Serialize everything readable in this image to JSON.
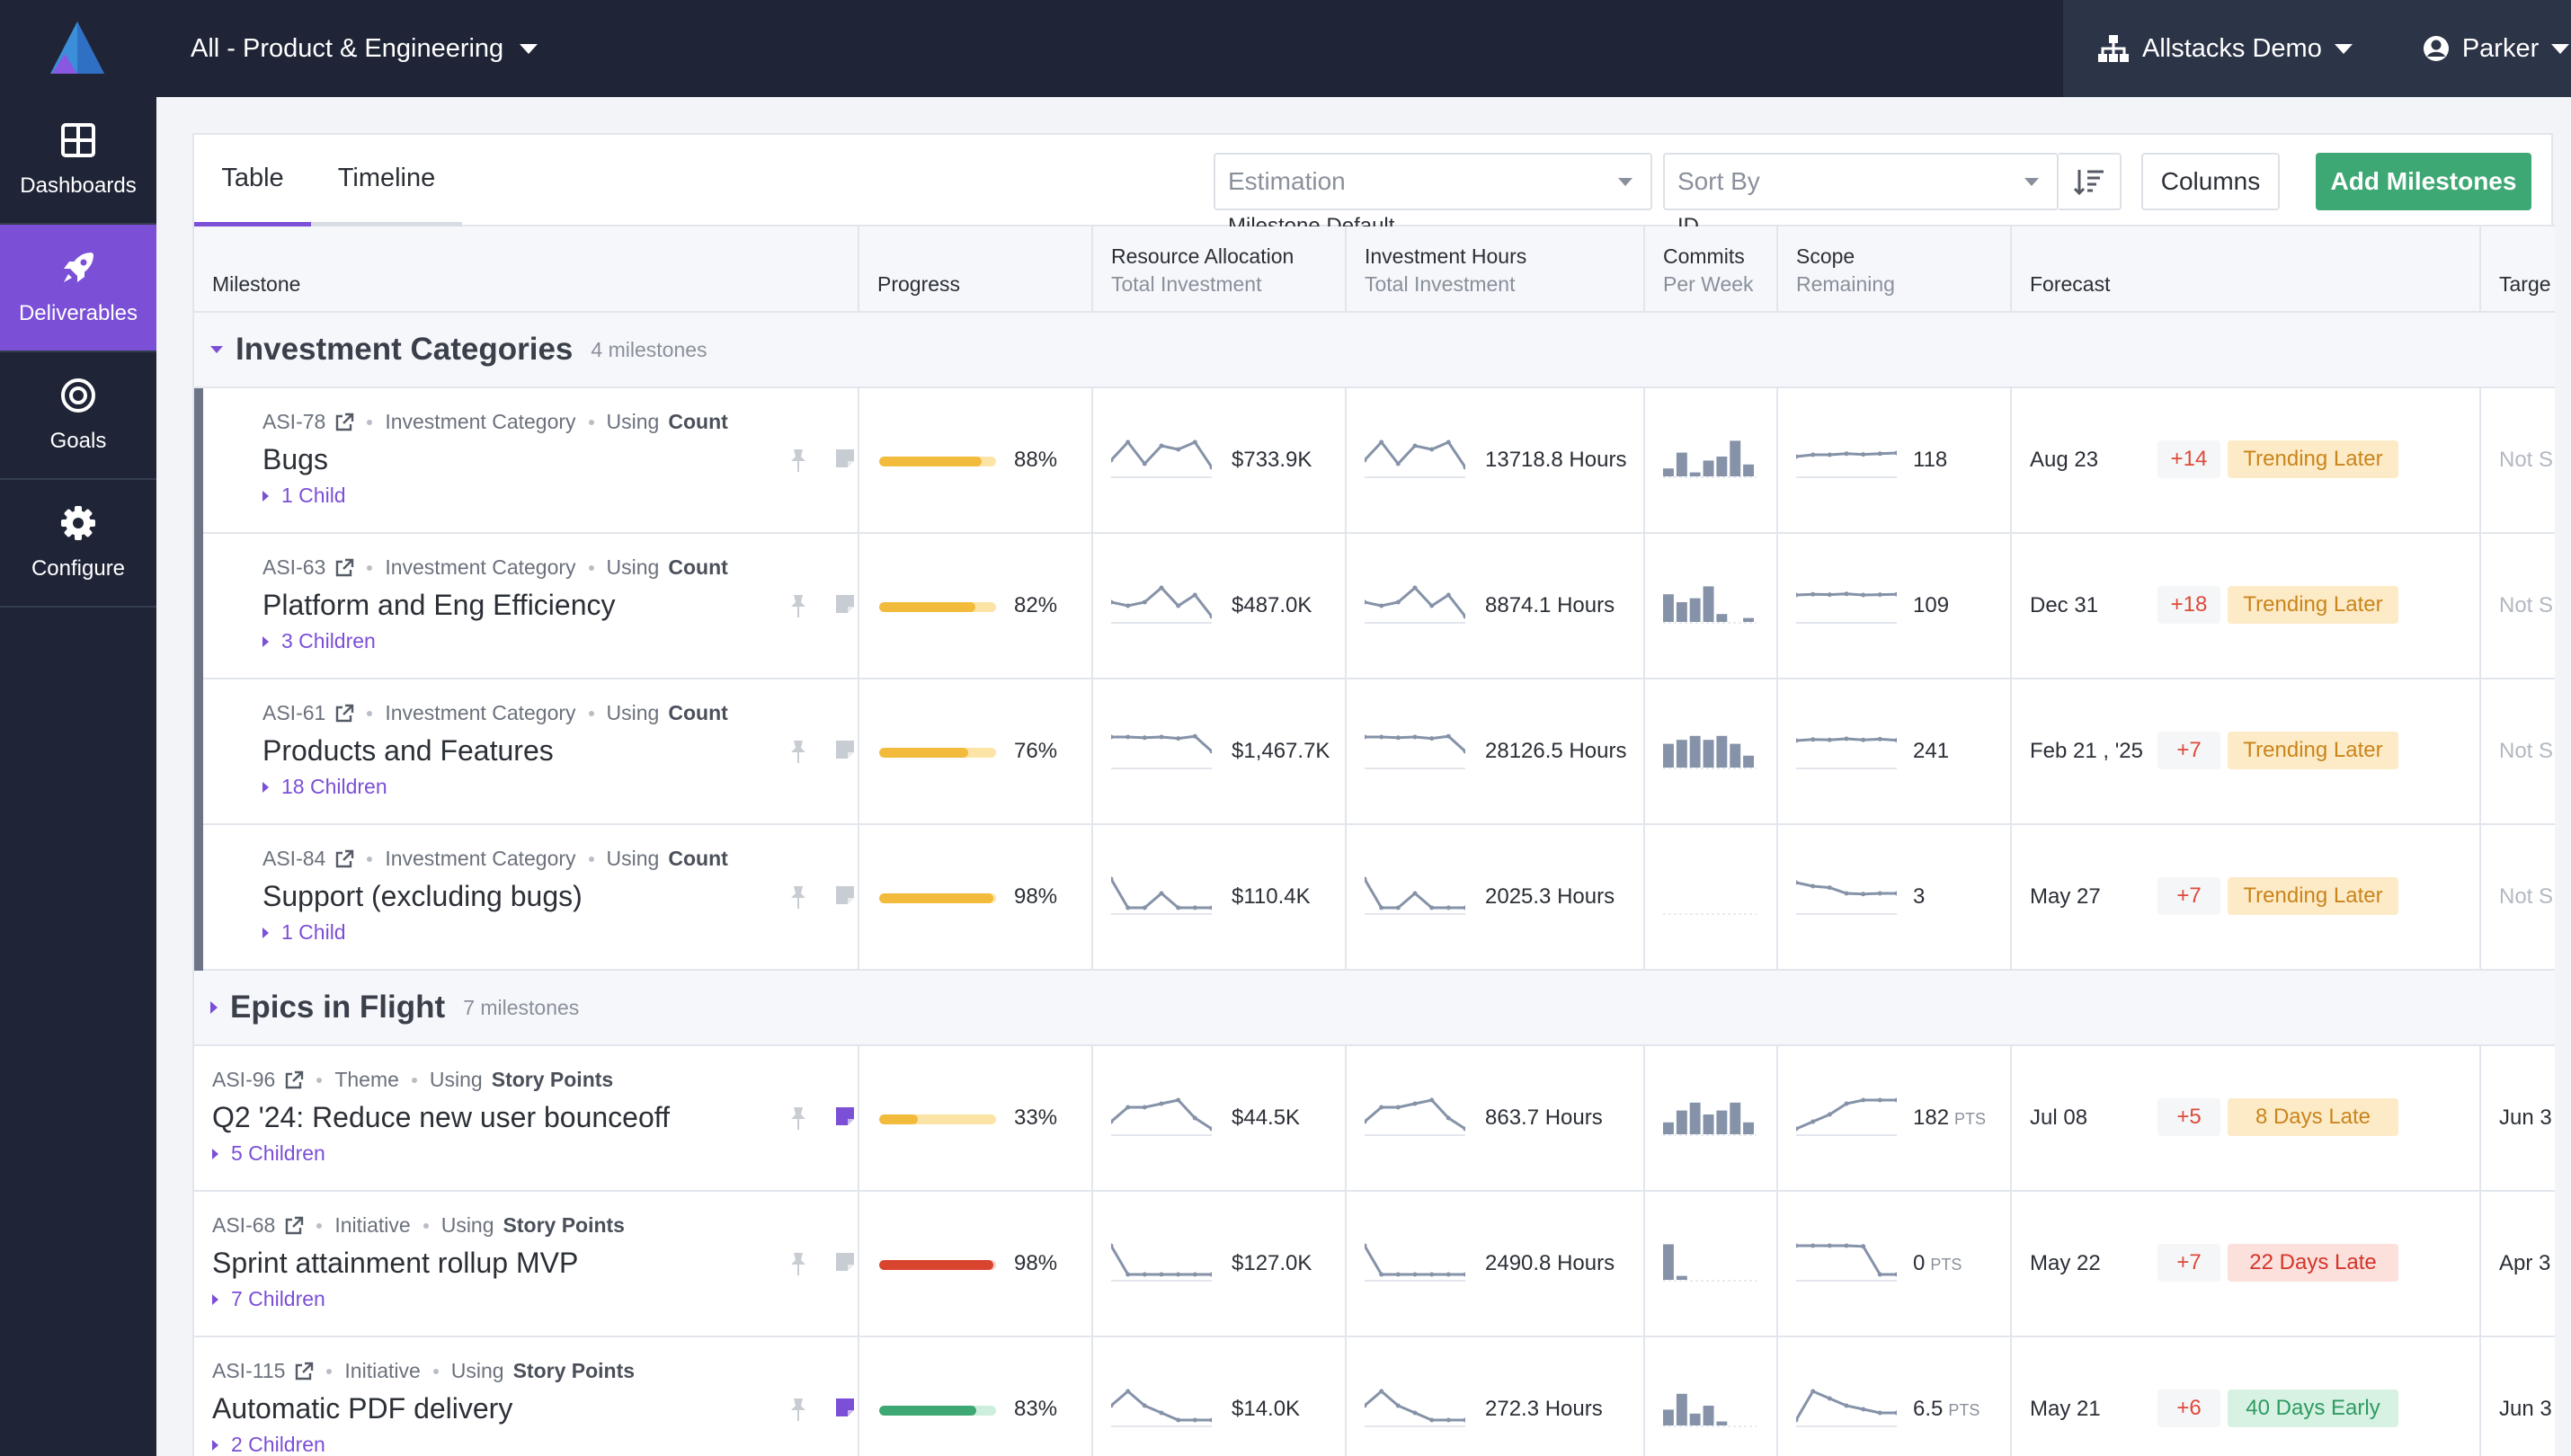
{
  "colors": {
    "accent": "#7b4fd6",
    "nav_bg": "#1f2536",
    "success": "#3ea874",
    "progress_yellow": "#f2bb3c",
    "progress_red": "#d9442f",
    "progress_green": "#3ea874",
    "spark": "#8592a8"
  },
  "topbar": {
    "scope_label": "All - Product & Engineering",
    "org_label": "Allstacks Demo",
    "user_label": "Parker"
  },
  "sidebar": {
    "items": [
      {
        "label": "Dashboards",
        "icon": "grid-icon"
      },
      {
        "label": "Deliverables",
        "icon": "rocket-icon",
        "active": true
      },
      {
        "label": "Goals",
        "icon": "target-icon"
      },
      {
        "label": "Configure",
        "icon": "gear-icon"
      }
    ]
  },
  "toolbar": {
    "tabs": [
      "Table",
      "Timeline"
    ],
    "estimation": {
      "label": "Estimation",
      "value": "Milestone Default"
    },
    "sort": {
      "label": "Sort By",
      "value": "ID"
    },
    "columns_label": "Columns",
    "add_label": "Add Milestones"
  },
  "columns": [
    {
      "title": "Milestone",
      "sub": ""
    },
    {
      "title": "Progress",
      "sub": ""
    },
    {
      "title": "Resource Allocation",
      "sub": "Total Investment"
    },
    {
      "title": "Investment Hours",
      "sub": "Total Investment"
    },
    {
      "title": "Commits",
      "sub": "Per Week"
    },
    {
      "title": "Scope",
      "sub": "Remaining"
    },
    {
      "title": "Forecast",
      "sub": ""
    },
    {
      "title": "Targe",
      "sub": ""
    }
  ],
  "groups": [
    {
      "name": "Investment Categories",
      "count": "4 milestones",
      "expanded": true
    },
    {
      "name": "Epics in Flight",
      "count": "7 milestones",
      "expanded": false
    }
  ],
  "rows": [
    {
      "id": "ASI-78",
      "type": "Investment Category",
      "using": "Using",
      "est": "Count",
      "title": "Bugs",
      "children": "1 Child",
      "progress": 0.88,
      "progress_label": "88%",
      "progress_color": "yellow",
      "resource": "$733.9K",
      "hours": "13718.8 Hours",
      "scope": "118",
      "scope_unit": "",
      "forecast_date": "Aug 23",
      "forecast_delta": "+14",
      "forecast_status": "Trending Later",
      "status_kind": "warn",
      "target": "Not S",
      "note_active": false,
      "spark_res": [
        4,
        9,
        3,
        8,
        7,
        9,
        2
      ],
      "spark_hrs": [
        4,
        9,
        3,
        8,
        7,
        9,
        2
      ],
      "spark_scope": [
        5,
        5.5,
        5.5,
        5.8,
        5.6,
        5.8,
        6
      ],
      "commits": [
        2,
        6,
        1,
        4,
        5,
        9,
        3
      ]
    },
    {
      "id": "ASI-63",
      "type": "Investment Category",
      "using": "Using",
      "est": "Count",
      "title": "Platform and Eng Efficiency",
      "children": "3 Children",
      "progress": 0.82,
      "progress_label": "82%",
      "progress_color": "yellow",
      "resource": "$487.0K",
      "hours": "8874.1 Hours",
      "scope": "109",
      "scope_unit": "",
      "forecast_date": "Dec 31",
      "forecast_delta": "+18",
      "forecast_status": "Trending Later",
      "status_kind": "warn",
      "target": "Not S",
      "note_active": false,
      "spark_res": [
        5,
        4,
        5,
        9,
        4,
        7,
        1
      ],
      "spark_hrs": [
        5,
        4,
        5,
        9,
        4,
        7,
        1
      ],
      "spark_scope": [
        7,
        7.2,
        7.1,
        7.3,
        7,
        7.1,
        7.2
      ],
      "commits": [
        7,
        5,
        6,
        9,
        2,
        0,
        1
      ]
    },
    {
      "id": "ASI-61",
      "type": "Investment Category",
      "using": "Using",
      "est": "Count",
      "title": "Products and Features",
      "children": "18 Children",
      "progress": 0.76,
      "progress_label": "76%",
      "progress_color": "yellow",
      "resource": "$1,467.7K",
      "hours": "28126.5 Hours",
      "scope": "241",
      "scope_unit": "",
      "forecast_date": "Feb 21 , '25",
      "forecast_delta": "+7",
      "forecast_status": "Trending Later",
      "status_kind": "warn",
      "target": "Not S",
      "note_active": false,
      "spark_res": [
        8,
        8,
        7.8,
        8,
        7.6,
        8.2,
        4
      ],
      "spark_hrs": [
        8,
        8,
        7.8,
        8,
        7.6,
        8.2,
        4
      ],
      "spark_scope": [
        7,
        7.3,
        7.2,
        7.5,
        7.2,
        7.4,
        7.1
      ],
      "commits": [
        6,
        7,
        8,
        7,
        8,
        6,
        3
      ]
    },
    {
      "id": "ASI-84",
      "type": "Investment Category",
      "using": "Using",
      "est": "Count",
      "title": "Support (excluding bugs)",
      "children": "1 Child",
      "progress": 0.98,
      "progress_label": "98%",
      "progress_color": "yellow",
      "resource": "$110.4K",
      "hours": "2025.3 Hours",
      "scope": "3",
      "scope_unit": "",
      "forecast_date": "May 27",
      "forecast_delta": "+7",
      "forecast_status": "Trending Later",
      "status_kind": "warn",
      "target": "Not S",
      "note_active": false,
      "spark_res": [
        9,
        1,
        1,
        5,
        1,
        1,
        1
      ],
      "spark_hrs": [
        9,
        1,
        1,
        5,
        1,
        1,
        1
      ],
      "spark_scope": [
        8,
        7,
        6.6,
        5,
        4.8,
        5,
        5
      ],
      "commits": [
        0,
        0,
        0,
        0,
        0,
        0,
        0
      ]
    },
    {
      "id": "ASI-96",
      "type": "Theme",
      "using": "Using",
      "est": "Story Points",
      "title": "Q2 '24: Reduce new user bounceoff",
      "children": "5 Children",
      "progress": 0.33,
      "progress_label": "33%",
      "progress_color": "yellow",
      "resource": "$44.5K",
      "hours": "863.7 Hours",
      "scope": "182",
      "scope_unit": "PTS",
      "forecast_date": "Jul 08",
      "forecast_delta": "+5",
      "forecast_status": "8 Days Late",
      "status_kind": "warn",
      "target": "Jun 3",
      "note_active": true,
      "spark_res": [
        3,
        7,
        7,
        8,
        9,
        4,
        1
      ],
      "spark_hrs": [
        3,
        7,
        7,
        8,
        9,
        4,
        1
      ],
      "spark_scope": [
        1,
        3,
        5,
        8,
        9,
        9,
        9
      ],
      "commits": [
        3,
        6,
        8,
        5,
        6,
        8,
        3
      ]
    },
    {
      "id": "ASI-68",
      "type": "Initiative",
      "using": "Using",
      "est": "Story Points",
      "title": "Sprint attainment rollup MVP",
      "children": "7 Children",
      "progress": 0.98,
      "progress_label": "98%",
      "progress_color": "red",
      "resource": "$127.0K",
      "hours": "2490.8 Hours",
      "scope": "0",
      "scope_unit": "PTS",
      "forecast_date": "May 22",
      "forecast_delta": "+7",
      "forecast_status": "22 Days Late",
      "status_kind": "bad",
      "target": "Apr 3",
      "note_active": false,
      "spark_res": [
        9,
        1,
        1,
        1,
        1,
        1,
        1
      ],
      "spark_hrs": [
        9,
        1,
        1,
        1,
        1,
        1,
        1
      ],
      "spark_scope": [
        9,
        9,
        9,
        9,
        8.8,
        1,
        1
      ],
      "commits": [
        9,
        1,
        0,
        0,
        0,
        0,
        0
      ]
    },
    {
      "id": "ASI-115",
      "type": "Initiative",
      "using": "Using",
      "est": "Story Points",
      "title": "Automatic PDF delivery",
      "children": "2 Children",
      "progress": 0.83,
      "progress_label": "83%",
      "progress_color": "green",
      "resource": "$14.0K",
      "hours": "272.3 Hours",
      "scope": "6.5",
      "scope_unit": "PTS",
      "forecast_date": "May 21",
      "forecast_delta": "+6",
      "forecast_status": "40 Days Early",
      "status_kind": "good",
      "target": "Jun 3",
      "note_active": true,
      "spark_res": [
        5,
        9,
        5,
        3,
        1,
        1,
        1
      ],
      "spark_hrs": [
        5,
        9,
        5,
        3,
        1,
        1,
        1
      ],
      "spark_scope": [
        1,
        9,
        7,
        5,
        4,
        3,
        3
      ],
      "commits": [
        4,
        8,
        3,
        5,
        1,
        0,
        0
      ]
    }
  ]
}
